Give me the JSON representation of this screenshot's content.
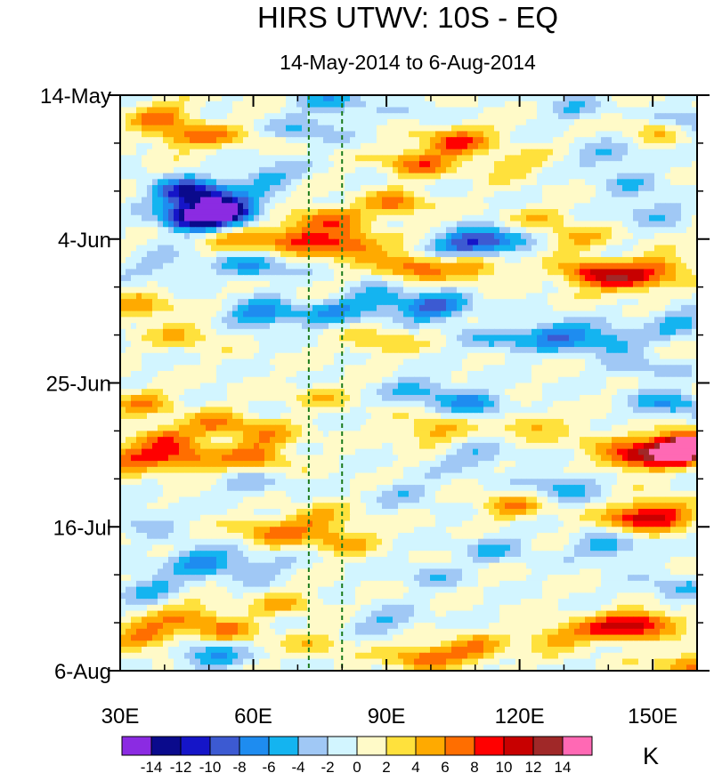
{
  "chart_data": {
    "type": "heatmap",
    "title": "HIRS UTWV: 10S - EQ",
    "subtitle": "14-May-2014 to 6-Aug-2014",
    "x_axis": {
      "range": [
        30,
        160
      ],
      "ticks": [
        30,
        60,
        90,
        120,
        150
      ],
      "tick_labels": [
        "30E",
        "60E",
        "90E",
        "120E",
        "150E"
      ]
    },
    "y_axis": {
      "range_days": [
        0,
        84
      ],
      "ticks_days": [
        0,
        21,
        42,
        63,
        84
      ],
      "tick_labels": [
        "14-May",
        "4-Jun",
        "25-Jun",
        "16-Jul",
        "6-Aug"
      ]
    },
    "reference_lines_x": [
      72.5,
      80
    ],
    "reference_line_color": "#1a7a1a",
    "colorbar": {
      "unit": "K",
      "levels": [
        -14,
        -12,
        -10,
        -8,
        -6,
        -4,
        -2,
        0,
        2,
        4,
        6,
        8,
        10,
        12,
        14
      ],
      "tick_labels": [
        "-14",
        "-12",
        "-10",
        "-8",
        "-6",
        "-4",
        "-2",
        "0",
        "2",
        "4",
        "6",
        "8",
        "10",
        "12",
        "14"
      ],
      "colors": [
        "#8b2be2",
        "#0a0a8c",
        "#1515c8",
        "#3c5ad2",
        "#1e8cf0",
        "#14b4f0",
        "#a0c8f5",
        "#d2f5ff",
        "#fffac8",
        "#ffe13c",
        "#ffaa00",
        "#ff6e00",
        "#ff0000",
        "#c80000",
        "#a02828",
        "#ff69b4"
      ]
    },
    "anomaly_features": [
      {
        "lon": 39,
        "day": 3,
        "value": 6
      },
      {
        "lon": 43,
        "day": 6,
        "value": 5
      },
      {
        "lon": 52,
        "day": 6,
        "value": 4
      },
      {
        "lon": 78,
        "day": 1,
        "value": -5
      },
      {
        "lon": 72,
        "day": 5,
        "value": -4
      },
      {
        "lon": 102,
        "day": 3,
        "value": -3
      },
      {
        "lon": 108,
        "day": 4,
        "value": 3
      },
      {
        "lon": 132,
        "day": 2,
        "value": -3
      },
      {
        "lon": 152,
        "day": 5,
        "value": 4
      },
      {
        "lon": 158,
        "day": 4,
        "value": -5
      },
      {
        "lon": 105,
        "day": 7,
        "value": 8
      },
      {
        "lon": 97,
        "day": 10,
        "value": 7
      },
      {
        "lon": 118,
        "day": 10,
        "value": 4
      },
      {
        "lon": 140,
        "day": 9,
        "value": -4
      },
      {
        "lon": 145,
        "day": 13,
        "value": -3
      },
      {
        "lon": 44,
        "day": 14,
        "value": -9
      },
      {
        "lon": 50,
        "day": 15,
        "value": -8
      },
      {
        "lon": 54,
        "day": 17,
        "value": -13
      },
      {
        "lon": 46,
        "day": 18,
        "value": -12
      },
      {
        "lon": 63,
        "day": 12,
        "value": -5
      },
      {
        "lon": 70,
        "day": 21,
        "value": 8
      },
      {
        "lon": 77,
        "day": 18,
        "value": 7
      },
      {
        "lon": 82,
        "day": 22,
        "value": 9
      },
      {
        "lon": 58,
        "day": 21,
        "value": 5
      },
      {
        "lon": 92,
        "day": 16,
        "value": 6
      },
      {
        "lon": 125,
        "day": 18,
        "value": 3
      },
      {
        "lon": 133,
        "day": 21,
        "value": 4
      },
      {
        "lon": 108,
        "day": 22,
        "value": -9
      },
      {
        "lon": 115,
        "day": 21,
        "value": -6
      },
      {
        "lon": 150,
        "day": 17,
        "value": -4
      },
      {
        "lon": 96,
        "day": 25,
        "value": 7
      },
      {
        "lon": 110,
        "day": 25,
        "value": 6
      },
      {
        "lon": 136,
        "day": 26,
        "value": 9
      },
      {
        "lon": 145,
        "day": 27,
        "value": 8
      },
      {
        "lon": 152,
        "day": 25,
        "value": 6
      },
      {
        "lon": 60,
        "day": 25,
        "value": -6
      },
      {
        "lon": 40,
        "day": 25,
        "value": -3
      },
      {
        "lon": 101,
        "day": 31,
        "value": -9
      },
      {
        "lon": 88,
        "day": 30,
        "value": -6
      },
      {
        "lon": 62,
        "day": 32,
        "value": -8
      },
      {
        "lon": 77,
        "day": 32,
        "value": -5
      },
      {
        "lon": 35,
        "day": 31,
        "value": 5
      },
      {
        "lon": 45,
        "day": 35,
        "value": 4
      },
      {
        "lon": 128,
        "day": 35,
        "value": -8
      },
      {
        "lon": 140,
        "day": 36,
        "value": -6
      },
      {
        "lon": 156,
        "day": 33,
        "value": -5
      },
      {
        "lon": 115,
        "day": 36,
        "value": -4
      },
      {
        "lon": 88,
        "day": 36,
        "value": 4
      },
      {
        "lon": 148,
        "day": 40,
        "value": -3
      },
      {
        "lon": 98,
        "day": 43,
        "value": -5
      },
      {
        "lon": 110,
        "day": 45,
        "value": -6
      },
      {
        "lon": 154,
        "day": 45,
        "value": -6
      },
      {
        "lon": 35,
        "day": 45,
        "value": 5
      },
      {
        "lon": 40,
        "day": 50,
        "value": 6
      },
      {
        "lon": 52,
        "day": 48,
        "value": 6
      },
      {
        "lon": 63,
        "day": 50,
        "value": 5
      },
      {
        "lon": 75,
        "day": 44,
        "value": 3
      },
      {
        "lon": 33,
        "day": 53,
        "value": 8
      },
      {
        "lon": 45,
        "day": 53,
        "value": 7
      },
      {
        "lon": 60,
        "day": 53,
        "value": 6
      },
      {
        "lon": 100,
        "day": 49,
        "value": 5
      },
      {
        "lon": 122,
        "day": 48,
        "value": 4
      },
      {
        "lon": 137,
        "day": 50,
        "value": 3
      },
      {
        "lon": 155,
        "day": 52,
        "value": 11
      },
      {
        "lon": 146,
        "day": 53,
        "value": 9
      },
      {
        "lon": 158,
        "day": 51,
        "value": 14
      },
      {
        "lon": 110,
        "day": 53,
        "value": -4
      },
      {
        "lon": 130,
        "day": 57,
        "value": -5
      },
      {
        "lon": 60,
        "day": 57,
        "value": -3
      },
      {
        "lon": 95,
        "day": 58,
        "value": -3
      },
      {
        "lon": 74,
        "day": 62,
        "value": 5
      },
      {
        "lon": 64,
        "day": 64,
        "value": 6
      },
      {
        "lon": 80,
        "day": 65,
        "value": 5
      },
      {
        "lon": 118,
        "day": 60,
        "value": 5
      },
      {
        "lon": 146,
        "day": 62,
        "value": 7
      },
      {
        "lon": 152,
        "day": 61,
        "value": 8
      },
      {
        "lon": 140,
        "day": 66,
        "value": -5
      },
      {
        "lon": 115,
        "day": 66,
        "value": -4
      },
      {
        "lon": 35,
        "day": 62,
        "value": -3
      },
      {
        "lon": 48,
        "day": 68,
        "value": -7
      },
      {
        "lon": 60,
        "day": 69,
        "value": -4
      },
      {
        "lon": 37,
        "day": 72,
        "value": -5
      },
      {
        "lon": 100,
        "day": 70,
        "value": -3
      },
      {
        "lon": 45,
        "day": 76,
        "value": 6
      },
      {
        "lon": 55,
        "day": 78,
        "value": 5
      },
      {
        "lon": 36,
        "day": 79,
        "value": 7
      },
      {
        "lon": 68,
        "day": 74,
        "value": 4
      },
      {
        "lon": 140,
        "day": 78,
        "value": 7
      },
      {
        "lon": 148,
        "day": 77,
        "value": 9
      },
      {
        "lon": 128,
        "day": 79,
        "value": 5
      },
      {
        "lon": 98,
        "day": 82,
        "value": 7
      },
      {
        "lon": 110,
        "day": 81,
        "value": 6
      },
      {
        "lon": 158,
        "day": 83,
        "value": 6
      },
      {
        "lon": 90,
        "day": 77,
        "value": -4
      },
      {
        "lon": 50,
        "day": 82,
        "value": -6
      },
      {
        "lon": 75,
        "day": 80,
        "value": 3
      },
      {
        "lon": 155,
        "day": 72,
        "value": -4
      }
    ]
  }
}
